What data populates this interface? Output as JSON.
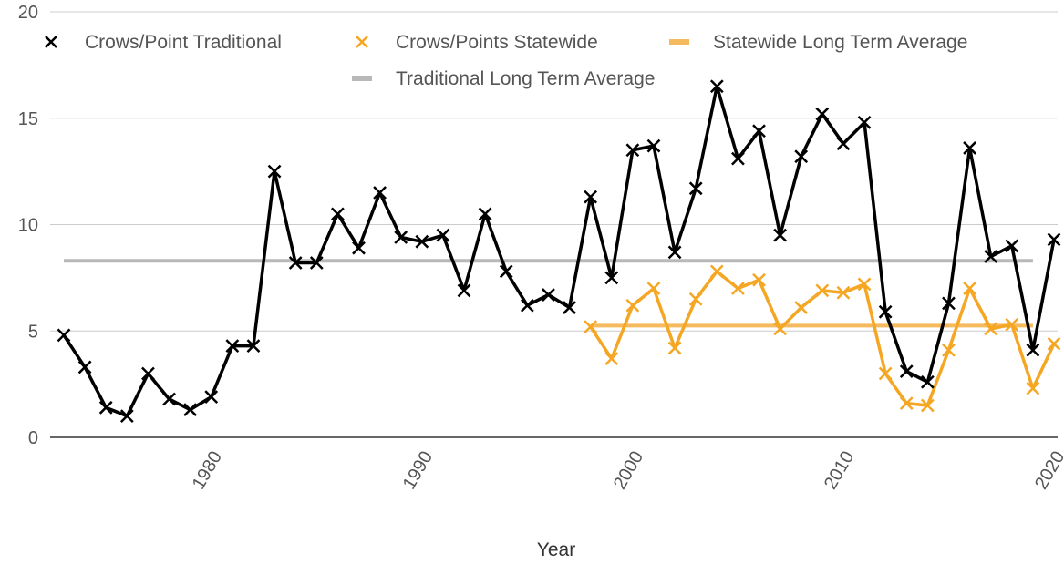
{
  "chart_data": {
    "type": "line",
    "title": "",
    "xlabel": "Year",
    "ylabel": "",
    "xlim": [
      1973,
      2020
    ],
    "ylim": [
      0,
      20
    ],
    "x_ticks": [
      1980,
      1990,
      2000,
      2010,
      2020
    ],
    "y_ticks": [
      0,
      5,
      10,
      15,
      20
    ],
    "grid": true,
    "legend_position": "top",
    "series": [
      {
        "name": "Crows/Point Traditional",
        "color": "#000000",
        "marker": "x-mark",
        "x": [
          1973,
          1974,
          1975,
          1976,
          1977,
          1978,
          1979,
          1980,
          1981,
          1982,
          1983,
          1984,
          1985,
          1986,
          1987,
          1988,
          1989,
          1990,
          1991,
          1992,
          1993,
          1994,
          1995,
          1996,
          1997,
          1998,
          1999,
          2000,
          2001,
          2002,
          2003,
          2004,
          2005,
          2006,
          2007,
          2008,
          2009,
          2010,
          2011,
          2012,
          2013,
          2014,
          2015,
          2016,
          2017,
          2018,
          2019,
          2020
        ],
        "y": [
          4.8,
          3.3,
          1.4,
          1.0,
          3.0,
          1.8,
          1.3,
          1.9,
          4.3,
          4.3,
          12.5,
          8.2,
          8.2,
          10.5,
          8.9,
          11.5,
          9.4,
          9.2,
          9.5,
          6.9,
          10.5,
          7.8,
          6.2,
          6.7,
          6.1,
          11.3,
          7.5,
          13.5,
          13.7,
          8.7,
          11.7,
          16.5,
          13.1,
          14.4,
          9.5,
          13.2,
          15.2,
          13.8,
          14.8,
          5.9,
          3.1,
          2.6,
          6.3,
          13.6,
          8.5,
          9.0,
          4.1,
          9.3
        ]
      },
      {
        "name": "Crows/Points Statewide",
        "color": "#f5a623",
        "marker": "x-mark",
        "x": [
          1998,
          1999,
          2000,
          2001,
          2002,
          2003,
          2004,
          2005,
          2006,
          2007,
          2008,
          2009,
          2010,
          2011,
          2012,
          2013,
          2014,
          2015,
          2016,
          2017,
          2018,
          2019,
          2020
        ],
        "y": [
          5.2,
          3.7,
          6.2,
          7.0,
          4.2,
          6.5,
          7.8,
          7.0,
          7.4,
          5.1,
          6.1,
          6.9,
          6.8,
          7.2,
          3.0,
          1.6,
          1.5,
          4.1,
          7.0,
          5.1,
          5.3,
          2.3,
          4.4
        ]
      },
      {
        "name": "Statewide Long Term Average",
        "color": "#f5b95e",
        "marker": "none",
        "x": [
          1998,
          2019
        ],
        "y": [
          5.25,
          5.25
        ]
      },
      {
        "name": "Traditional Long Term Average",
        "color": "#b8b8b8",
        "marker": "none",
        "x": [
          1973,
          2019
        ],
        "y": [
          8.3,
          8.3
        ]
      }
    ]
  }
}
